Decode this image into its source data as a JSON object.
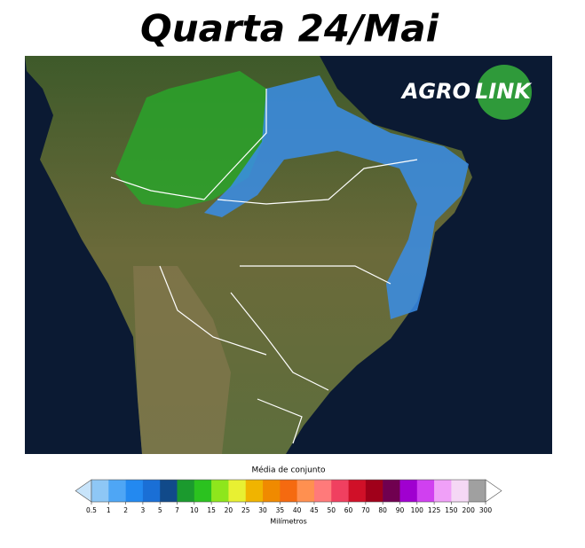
{
  "header": {
    "title": "Quarta 24/Mai"
  },
  "logo": {
    "part1": "AGRO",
    "part2": "LINK"
  },
  "colorbar": {
    "title": "Média de conjunto",
    "unit": "Milímetros",
    "ticks": [
      0.5,
      1,
      2,
      3,
      5,
      7,
      10,
      15,
      20,
      25,
      30,
      35,
      40,
      45,
      50,
      60,
      70,
      80,
      90,
      100,
      125,
      150,
      200,
      300
    ],
    "colors": [
      "#8ec7f5",
      "#4ea6f5",
      "#2389f0",
      "#1a6fd6",
      "#114a8a",
      "#1b9a2e",
      "#2bc21f",
      "#8ee61c",
      "#e8f032",
      "#f0b400",
      "#f08a00",
      "#f56a10",
      "#ff9050",
      "#ff7a7a",
      "#f04060",
      "#d01028",
      "#a0001a",
      "#700050",
      "#a000d0",
      "#d040f0",
      "#f0a0f8",
      "#f5d8f5",
      "#a0a0a0"
    ],
    "under_color": "#c8e4fa",
    "over_color": "#ffffff"
  }
}
